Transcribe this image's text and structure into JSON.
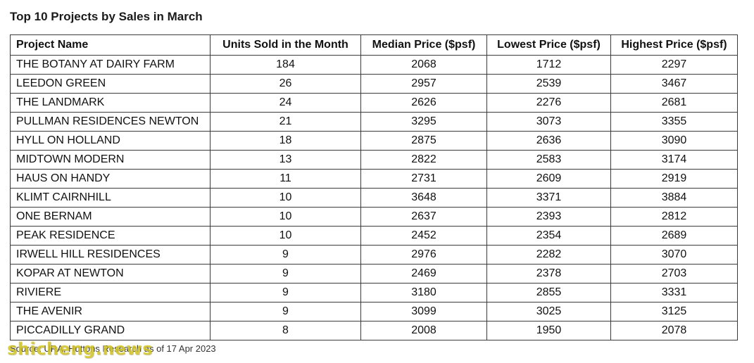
{
  "title": "Top 10 Projects by Sales in March",
  "table": {
    "headers": [
      "Project Name",
      "Units Sold in the Month",
      "Median Price ($psf)",
      "Lowest Price ($psf)",
      "Highest Price ($psf)"
    ],
    "rows": [
      [
        "THE BOTANY AT DAIRY FARM",
        "184",
        "2068",
        "1712",
        "2297"
      ],
      [
        "LEEDON GREEN",
        "26",
        "2957",
        "2539",
        "3467"
      ],
      [
        "THE LANDMARK",
        "24",
        "2626",
        "2276",
        "2681"
      ],
      [
        "PULLMAN RESIDENCES NEWTON",
        "21",
        "3295",
        "3073",
        "3355"
      ],
      [
        "HYLL ON HOLLAND",
        "18",
        "2875",
        "2636",
        "3090"
      ],
      [
        "MIDTOWN MODERN",
        "13",
        "2822",
        "2583",
        "3174"
      ],
      [
        "HAUS ON HANDY",
        "11",
        "2731",
        "2609",
        "2919"
      ],
      [
        "KLIMT CAIRNHILL",
        "10",
        "3648",
        "3371",
        "3884"
      ],
      [
        "ONE BERNAM",
        "10",
        "2637",
        "2393",
        "2812"
      ],
      [
        "PEAK RESIDENCE",
        "10",
        "2452",
        "2354",
        "2689"
      ],
      [
        "IRWELL HILL RESIDENCES",
        "9",
        "2976",
        "2282",
        "3070"
      ],
      [
        "KOPAR AT NEWTON",
        "9",
        "2469",
        "2378",
        "2703"
      ],
      [
        "RIVIERE",
        "9",
        "3180",
        "2855",
        "3331"
      ],
      [
        "THE AVENIR",
        "9",
        "3099",
        "3025",
        "3125"
      ],
      [
        "PICCADILLY GRAND",
        "8",
        "2008",
        "1950",
        "2078"
      ]
    ]
  },
  "source": "Source: URA, Huttons Research as of 17 Apr 2023",
  "watermark": "shicheng.news"
}
